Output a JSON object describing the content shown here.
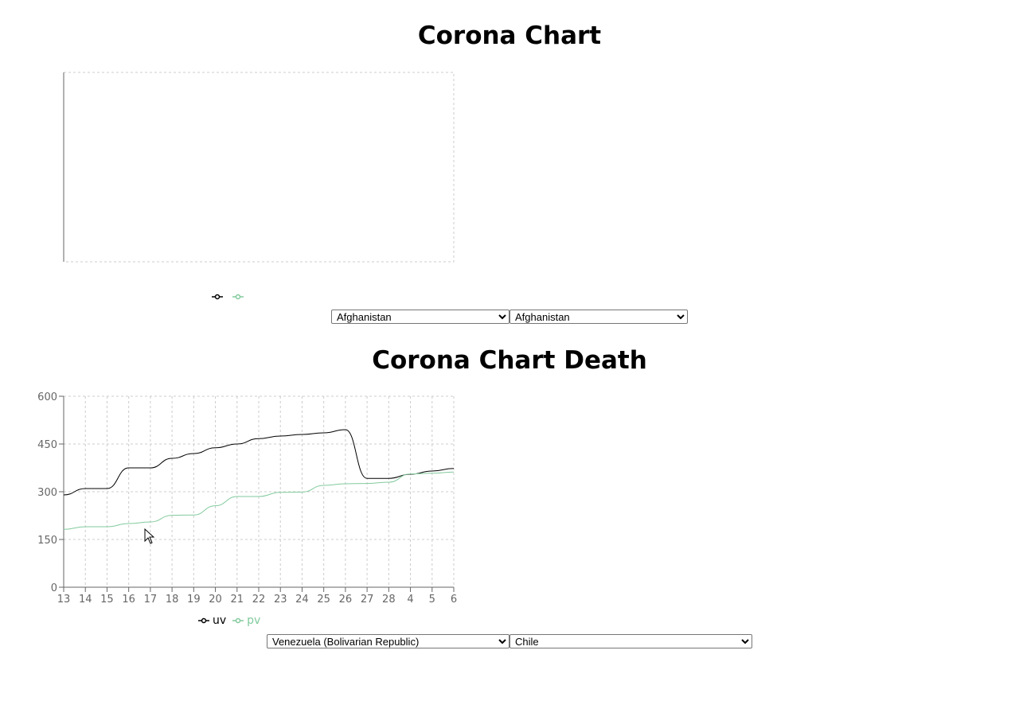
{
  "charts": [
    {
      "title": "Corona Chart",
      "selects": {
        "left": "Afghanistan",
        "right": "Afghanistan"
      },
      "legend": [
        {
          "label": "",
          "color": "#000000"
        },
        {
          "label": "",
          "color": "#82ca9d"
        }
      ]
    },
    {
      "title": "Corona Chart Death",
      "selects": {
        "left": "Venezuela (Bolivarian Republic)",
        "right": "Chile"
      },
      "legend": [
        {
          "label": "uv",
          "color": "#000000"
        },
        {
          "label": "pv",
          "color": "#82ca9d"
        }
      ]
    }
  ],
  "chart_data": [
    {
      "type": "line",
      "title": "Corona Chart",
      "categories": [],
      "series": [
        {
          "values": [],
          "color": "#000000"
        },
        {
          "values": [],
          "color": "#82ca9d"
        }
      ],
      "grid": true,
      "legend_position": "bottom"
    },
    {
      "type": "line",
      "title": "Corona Chart Death",
      "categories": [
        "13",
        "14",
        "15",
        "16",
        "17",
        "18",
        "19",
        "20",
        "21",
        "22",
        "23",
        "24",
        "25",
        "26",
        "27",
        "28",
        "4",
        "5",
        "6"
      ],
      "series": [
        {
          "name": "uv",
          "color": "#000000",
          "values": [
            290,
            310,
            310,
            375,
            375,
            405,
            420,
            438,
            450,
            467,
            475,
            480,
            485,
            495,
            342,
            342,
            355,
            365,
            373
          ]
        },
        {
          "name": "pv",
          "color": "#82ca9d",
          "values": [
            182,
            190,
            190,
            200,
            205,
            226,
            227,
            256,
            285,
            285,
            298,
            299,
            320,
            325,
            326,
            330,
            356,
            358,
            362
          ]
        }
      ],
      "yticks": [
        0,
        150,
        300,
        450,
        600
      ],
      "ylim": [
        0,
        600
      ],
      "grid": true,
      "legend_position": "bottom"
    }
  ]
}
